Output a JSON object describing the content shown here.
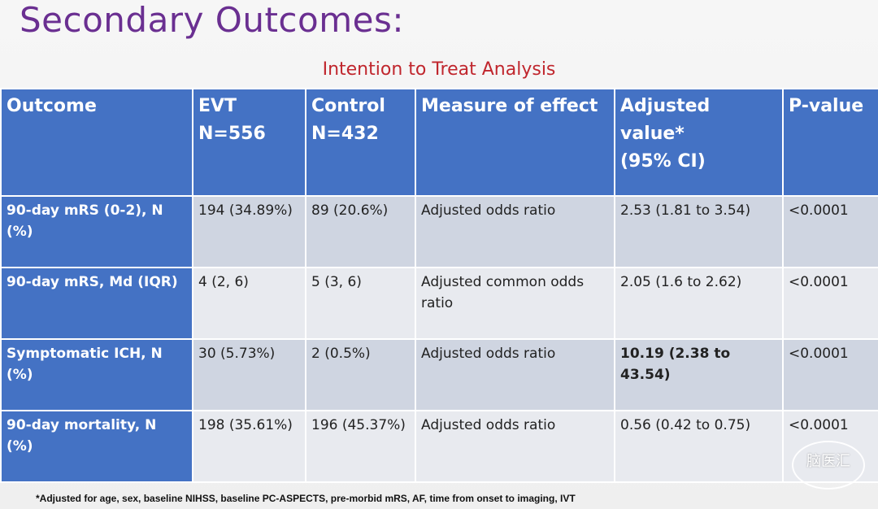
{
  "slide": {
    "title": "Secondary Outcomes:",
    "subtitle": "Intention to Treat Analysis",
    "footnote": "*Adjusted for age, sex, baseline NIHSS, baseline PC-ASPECTS, pre-morbid mRS, AF, time from onset to imaging, IVT",
    "watermark": "脑医汇"
  },
  "table": {
    "headers": [
      {
        "line1": "Outcome",
        "line2": ""
      },
      {
        "line1": "EVT",
        "line2": "N=556"
      },
      {
        "line1": "Control",
        "line2": "N=432"
      },
      {
        "line1": "Measure of effect",
        "line2": ""
      },
      {
        "line1": "Adjusted value*",
        "line2": "(95% CI)"
      },
      {
        "line1": "P-value",
        "line2": ""
      }
    ],
    "rows": [
      {
        "outcome": "90-day mRS (0-2), N (%)",
        "evt": "194 (34.89%)",
        "control": "89 (20.6%)",
        "measure": "Adjusted odds ratio",
        "adjusted": "2.53 (1.81 to 3.54)",
        "p": "<0.0001"
      },
      {
        "outcome": "90-day mRS, Md (IQR)",
        "evt": "4 (2, 6)",
        "control": "5 (3, 6)",
        "measure": "Adjusted common odds ratio",
        "adjusted": "2.05 (1.6 to 2.62)",
        "p": "<0.0001"
      },
      {
        "outcome": "Symptomatic ICH, N (%)",
        "evt": "30 (5.73%)",
        "control": "2 (0.5%)",
        "measure": "Adjusted odds ratio",
        "adjusted": "10.19 (2.38 to 43.54)",
        "p": "<0.0001"
      },
      {
        "outcome": "90-day mortality, N (%)",
        "evt": "198 (35.61%)",
        "control": "196 (45.37%)",
        "measure": "Adjusted odds ratio",
        "adjusted": "0.56 (0.42 to 0.75)",
        "p": "<0.0001"
      }
    ]
  },
  "colors": {
    "title": "#6a2f91",
    "subtitle": "#c0262d",
    "header_fill": "#4472c4",
    "row_fill_dark": "#cfd5e1",
    "row_fill_light": "#e8eaef"
  }
}
